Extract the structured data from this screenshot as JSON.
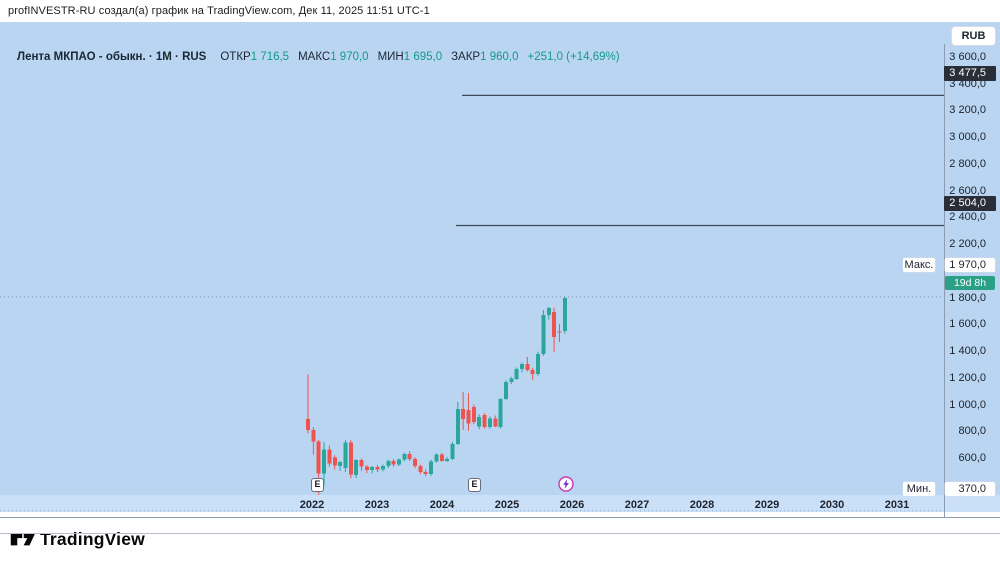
{
  "topbar": {
    "attribution": "profINVESTR-RU создал(а) график на TradingView.com, Дек 11, 2025 11:51 UTC-1"
  },
  "legend": {
    "title": "Лента МКПАО - обыкн. · 1M · RUS",
    "fields": [
      {
        "label": "ОТКР",
        "value": "1 716,5"
      },
      {
        "label": "МАКС",
        "value": "1 970,0"
      },
      {
        "label": "МИН",
        "value": "1 695,0"
      },
      {
        "label": "ЗАКР",
        "value": "1 960,0"
      }
    ],
    "change": "+251,0 (+14,69%)"
  },
  "price_axis": {
    "currency_button": "RUB",
    "ticks": [
      {
        "label": "3 600,0",
        "price": 3600
      },
      {
        "label": "3 400,0",
        "price": 3400
      },
      {
        "label": "3 200,0",
        "price": 3200
      },
      {
        "label": "3 000,0",
        "price": 3000
      },
      {
        "label": "2 800,0",
        "price": 2800
      },
      {
        "label": "2 600,0",
        "price": 2600
      },
      {
        "label": "2 400,0",
        "price": 2400
      },
      {
        "label": "2 200,0",
        "price": 2200
      },
      {
        "label": "1 800,0",
        "price": 1800
      },
      {
        "label": "1 600,0",
        "price": 1600
      },
      {
        "label": "1 400,0",
        "price": 1400
      },
      {
        "label": "1 200,0",
        "price": 1200
      },
      {
        "label": "1 000,0",
        "price": 1000
      },
      {
        "label": "800,0",
        "price": 800
      },
      {
        "label": "600,0",
        "price": 600
      }
    ],
    "level_badges": [
      {
        "label": "3 477,5",
        "price": 3477.5
      },
      {
        "label": "2 504,0",
        "price": 2504
      }
    ],
    "high_label": "Макс.",
    "high_badge": "1 970,0",
    "countdown": "19d 8h",
    "low_label": "Мин.",
    "low_badge": "370,0"
  },
  "time_axis": {
    "years": [
      "2022",
      "2023",
      "2024",
      "2025",
      "2026",
      "2027",
      "2028",
      "2029",
      "2030",
      "2031"
    ]
  },
  "markers": {
    "earnings": [
      {
        "label": "E",
        "x": 317
      },
      {
        "label": "E",
        "x": 474
      }
    ],
    "event": {
      "icon": "lightning-circle-icon",
      "x": 566
    }
  },
  "footer": {
    "brand": "TradingView"
  },
  "colors": {
    "up": "#2aa79a",
    "down": "#ef5350",
    "chart_bg": "#b9d5f1",
    "time_strip_bg": "#c9e0f8",
    "level_line": "#3e4a57",
    "dotted_level": "#7a93b0",
    "axis_line": "#8c9bb0",
    "badge_dark_bg": "#2a2e39",
    "countdown_bg": "#2aa086",
    "value_teal": "#14998a",
    "event_ring": "#c939ae",
    "event_bolt": "#8028c9"
  },
  "chart_data": {
    "type": "candlestick",
    "symbol": "Лента МКПАО",
    "timeframe": "1M",
    "currency": "RUB",
    "title": "Лента МКПАО - обыкн. · 1M · RUS",
    "ylim": [
      370,
      3650
    ],
    "grid": false,
    "price_levels": [
      3477.5,
      2504.0
    ],
    "high_marker_price": 1970,
    "low_marker_price": 370,
    "x_years": [
      2022,
      2023,
      2024,
      2025,
      2026,
      2027,
      2028,
      2029,
      2030,
      2031
    ],
    "candles_format": [
      "month",
      "open",
      "high",
      "low",
      "close"
    ],
    "candles": [
      [
        "2021-12",
        1055,
        1390,
        950,
        975
      ],
      [
        "2022-01",
        975,
        995,
        790,
        888
      ],
      [
        "2022-02",
        888,
        900,
        490,
        650
      ],
      [
        "2022-03",
        650,
        885,
        560,
        830
      ],
      [
        "2022-04",
        830,
        858,
        700,
        725
      ],
      [
        "2022-05",
        768,
        785,
        678,
        710
      ],
      [
        "2022-06",
        705,
        740,
        668,
        735
      ],
      [
        "2022-07",
        690,
        898,
        660,
        882
      ],
      [
        "2022-08",
        882,
        898,
        612,
        640
      ],
      [
        "2022-09",
        638,
        755,
        615,
        748
      ],
      [
        "2022-10",
        748,
        762,
        668,
        700
      ],
      [
        "2022-11",
        700,
        712,
        652,
        675
      ],
      [
        "2022-12",
        675,
        705,
        650,
        698
      ],
      [
        "2023-01",
        698,
        712,
        660,
        678
      ],
      [
        "2023-02",
        678,
        715,
        665,
        705
      ],
      [
        "2023-03",
        705,
        752,
        690,
        742
      ],
      [
        "2023-04",
        742,
        758,
        700,
        715
      ],
      [
        "2023-05",
        715,
        762,
        705,
        752
      ],
      [
        "2023-06",
        752,
        805,
        740,
        795
      ],
      [
        "2023-07",
        795,
        815,
        742,
        758
      ],
      [
        "2023-08",
        758,
        770,
        688,
        705
      ],
      [
        "2023-09",
        705,
        715,
        645,
        660
      ],
      [
        "2023-10",
        660,
        680,
        628,
        645
      ],
      [
        "2023-11",
        645,
        752,
        632,
        740
      ],
      [
        "2023-12",
        740,
        800,
        730,
        790
      ],
      [
        "2024-01",
        790,
        802,
        738,
        742
      ],
      [
        "2024-02",
        742,
        772,
        735,
        758
      ],
      [
        "2024-03",
        758,
        885,
        750,
        870
      ],
      [
        "2024-04",
        870,
        1185,
        862,
        1132
      ],
      [
        "2024-05",
        1132,
        1260,
        975,
        1058
      ],
      [
        "2024-06",
        1125,
        1250,
        968,
        1022
      ],
      [
        "2024-07",
        1147,
        1165,
        1018,
        1035
      ],
      [
        "2024-08",
        1000,
        1092,
        980,
        1072
      ],
      [
        "2024-09",
        1087,
        1100,
        985,
        997
      ],
      [
        "2024-10",
        997,
        1075,
        982,
        1060
      ],
      [
        "2024-11",
        1060,
        1082,
        995,
        1002
      ],
      [
        "2024-12",
        997,
        1212,
        985,
        1207
      ],
      [
        "2025-01",
        1207,
        1345,
        1200,
        1334
      ],
      [
        "2025-02",
        1334,
        1372,
        1318,
        1360
      ],
      [
        "2025-03",
        1356,
        1442,
        1348,
        1431
      ],
      [
        "2025-04",
        1431,
        1478,
        1405,
        1469
      ],
      [
        "2025-05",
        1469,
        1521,
        1412,
        1424
      ],
      [
        "2025-06",
        1424,
        1440,
        1349,
        1394
      ],
      [
        "2025-07",
        1394,
        1560,
        1380,
        1543
      ],
      [
        "2025-08",
        1543,
        1872,
        1530,
        1835
      ],
      [
        "2025-09",
        1835,
        1895,
        1800,
        1887
      ],
      [
        "2025-10",
        1857,
        1890,
        1558,
        1670
      ],
      [
        "2025-11",
        1712,
        1768,
        1633,
        1709
      ],
      [
        "2025-12",
        1716.5,
        1970,
        1695,
        1960
      ]
    ]
  }
}
